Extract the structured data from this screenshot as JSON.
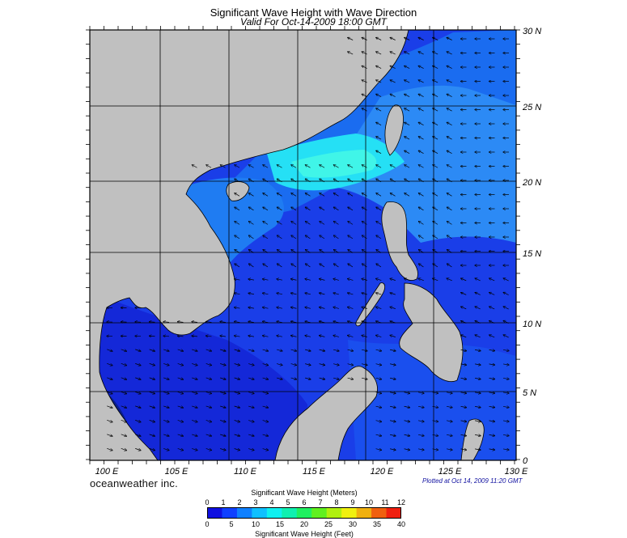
{
  "header": {
    "title": "Significant Wave Height with Wave Direction",
    "subtitle": "Valid For Oct-14-2009 18:00 GMT"
  },
  "map": {
    "lon_range": [
      100,
      130
    ],
    "lat_range": [
      0,
      30
    ],
    "lat_labels": [
      "30 N",
      "25 N",
      "20 N",
      "15 N",
      "10 N",
      "5 N",
      "0"
    ],
    "lon_labels": [
      "100 E",
      "105 E",
      "110 E",
      "115 E",
      "120 E",
      "125 E",
      "130 E"
    ],
    "grid": true,
    "land_color": "#c0c0c0",
    "arrow_color": "#000000"
  },
  "footer": {
    "brand": "oceanweather inc.",
    "plotted": "Plotted at Oct 14, 2009 11:20 GMT"
  },
  "colorbar": {
    "title_top": "Significant Wave Height (Meters)",
    "title_bottom": "Significant Wave Height (Feet)",
    "meters_ticks": [
      "0",
      "1",
      "2",
      "3",
      "4",
      "5",
      "6",
      "7",
      "8",
      "9",
      "10",
      "11",
      "12"
    ],
    "feet_ticks": [
      "0",
      "5",
      "10",
      "15",
      "20",
      "25",
      "30",
      "35",
      "40"
    ],
    "colors": [
      "#1010e0",
      "#1040ff",
      "#1080ff",
      "#10c0ff",
      "#10f0f0",
      "#10f0b0",
      "#20f060",
      "#60f020",
      "#b0f010",
      "#f0f010",
      "#f0b010",
      "#f06010",
      "#f02010"
    ]
  }
}
